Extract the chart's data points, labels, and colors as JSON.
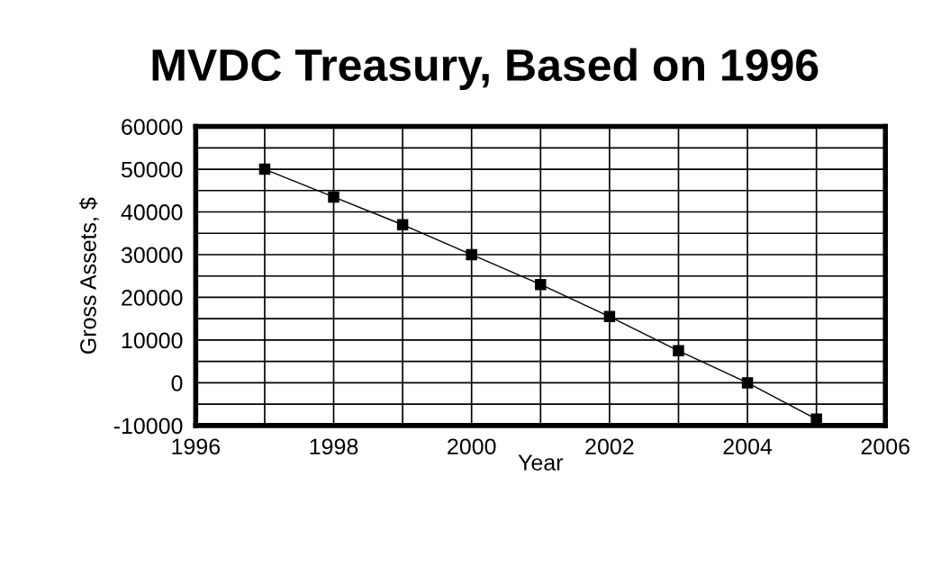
{
  "chart_data": {
    "type": "line",
    "title": "MVDC Treasury, Based on 1996",
    "xlabel": "Year",
    "ylabel": "Gross Assets, $",
    "x": [
      1997,
      1998,
      1999,
      2000,
      2001,
      2002,
      2003,
      2004,
      2005
    ],
    "series": [
      {
        "color": "#000000",
        "values": [
          50000,
          43500,
          37000,
          30000,
          23000,
          15500,
          7500,
          0,
          -8500
        ]
      }
    ],
    "xlim": [
      1996,
      2006
    ],
    "xticks": [
      1996,
      {
        "value": 1997,
        "label": null
      },
      1998,
      {
        "value": 1999,
        "label": null
      },
      2000,
      {
        "value": 2001,
        "label": null
      },
      2002,
      {
        "value": 2003,
        "label": null
      },
      2004,
      {
        "value": 2005,
        "label": null
      },
      2006
    ],
    "ylim": [
      -10000,
      60000
    ],
    "yticks": [
      -10000,
      {
        "value": -5000,
        "label": null
      },
      0,
      {
        "value": 5000,
        "label": null
      },
      10000,
      {
        "value": 15000,
        "label": null
      },
      20000,
      {
        "value": 25000,
        "label": null
      },
      30000,
      {
        "value": 35000,
        "label": null
      },
      40000,
      {
        "value": 45000,
        "label": null
      },
      50000,
      {
        "value": 55000,
        "label": null
      },
      60000
    ],
    "grid": true,
    "marker": "square",
    "line_style": "solid"
  }
}
